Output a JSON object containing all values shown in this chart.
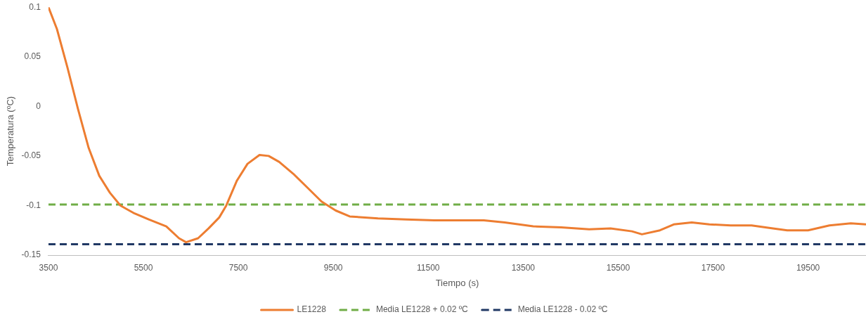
{
  "chart_data": {
    "type": "line",
    "xlabel": "Tiempo (s)",
    "ylabel": "Temperatura (ºC)",
    "xlim": [
      3500,
      20720
    ],
    "xticks": [
      3500,
      5500,
      7500,
      9500,
      11500,
      13500,
      15500,
      17500,
      19500
    ],
    "ylim": [
      -0.15,
      0.1
    ],
    "yticks": [
      -0.15,
      -0.1,
      -0.05,
      0,
      0.05,
      0.1
    ],
    "grid": false,
    "legend": "bottom",
    "marker": "none",
    "series": [
      {
        "name": "LE1228",
        "color": "#ed7d31",
        "line_style": "solid",
        "x": [
          3500,
          3678,
          3901,
          4124,
          4347,
          4570,
          4793,
          5016,
          5313,
          5610,
          5982,
          6250,
          6398,
          6651,
          6874,
          7097,
          7245,
          7468,
          7692,
          7945,
          8138,
          8360,
          8657,
          8955,
          9252,
          9549,
          9845,
          10440,
          11034,
          11628,
          12220,
          12670,
          13110,
          13710,
          14300,
          14890,
          15340,
          15790,
          16000,
          16380,
          16670,
          17050,
          17420,
          17870,
          18310,
          18760,
          19060,
          19500,
          19950,
          20400,
          20720
        ],
        "values": [
          0.1,
          0.078,
          0.039,
          -0.003,
          -0.042,
          -0.07,
          -0.087,
          -0.1,
          -0.108,
          -0.114,
          -0.121,
          -0.133,
          -0.137,
          -0.133,
          -0.123,
          -0.112,
          -0.1,
          -0.075,
          -0.058,
          -0.049,
          -0.05,
          -0.056,
          -0.068,
          -0.082,
          -0.096,
          -0.105,
          -0.111,
          -0.113,
          -0.114,
          -0.115,
          -0.115,
          -0.115,
          -0.117,
          -0.121,
          -0.122,
          -0.124,
          -0.123,
          -0.126,
          -0.129,
          -0.125,
          -0.119,
          -0.117,
          -0.119,
          -0.12,
          -0.12,
          -0.123,
          -0.125,
          -0.125,
          -0.12,
          -0.118,
          -0.119
        ]
      },
      {
        "name": "Media LE1228 + 0.02 ºC",
        "color": "#70ad47",
        "line_style": "dashed",
        "x": [
          3500,
          20720
        ],
        "values": [
          -0.099,
          -0.099
        ]
      },
      {
        "name": "Media LE1228 - 0.02 ºC",
        "color": "#203864",
        "line_style": "dashed",
        "x": [
          3500,
          20720
        ],
        "values": [
          -0.139,
          -0.139
        ]
      }
    ]
  }
}
